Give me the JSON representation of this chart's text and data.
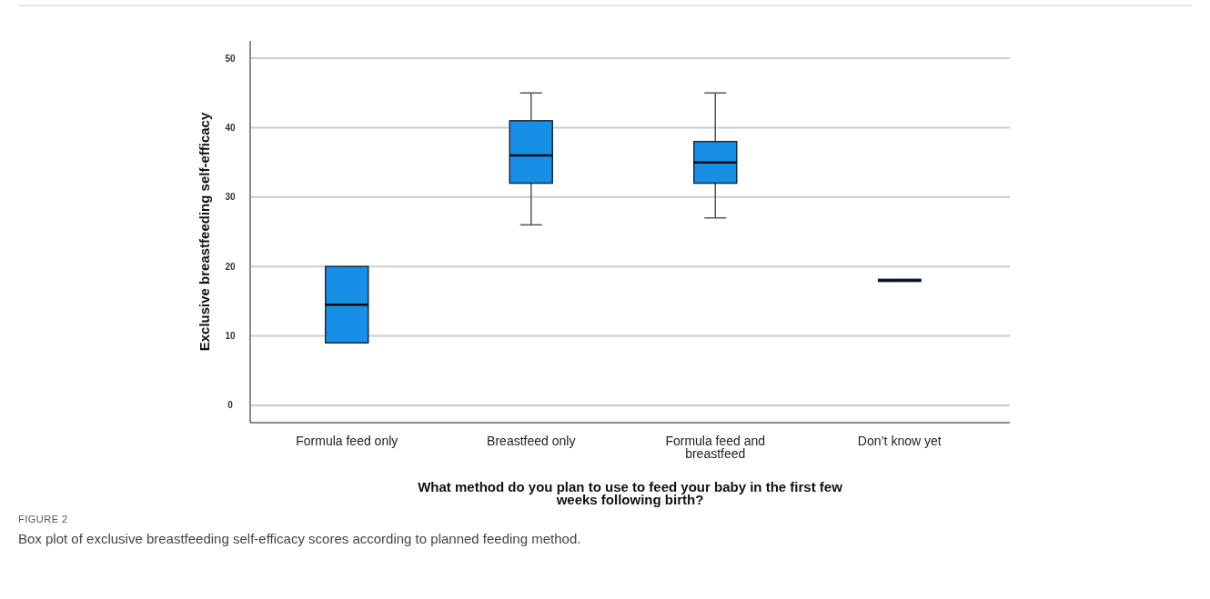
{
  "chart_data": {
    "type": "box",
    "xlabel": "What method do you plan to use to feed your baby in the first few weeks following birth?",
    "ylabel": "Exclusive breastfeeding self-efficacy",
    "categories": [
      "Formula feed only",
      "Breastfeed only",
      "Formula feed and breastfeed",
      "Don’t know yet"
    ],
    "boxes": [
      {
        "low": 9,
        "q1": 9,
        "median": 14.5,
        "q3": 20,
        "high": 20
      },
      {
        "low": 26,
        "q1": 32,
        "median": 36,
        "q3": 41,
        "high": 45
      },
      {
        "low": 27,
        "q1": 32,
        "median": 35,
        "q3": 38,
        "high": 45
      },
      {
        "low": 18,
        "q1": 18,
        "median": 18,
        "q3": 18,
        "high": 18
      }
    ],
    "color": "#1590e6",
    "ylim": [
      -2.5,
      52.5
    ],
    "yticks": [
      0,
      10,
      20,
      30,
      40,
      50
    ],
    "grid": "y",
    "annotations": [
      "FIGURE 2",
      "Box plot of exclusive breastfeeding self-efficacy scores according to planned feeding method."
    ]
  }
}
